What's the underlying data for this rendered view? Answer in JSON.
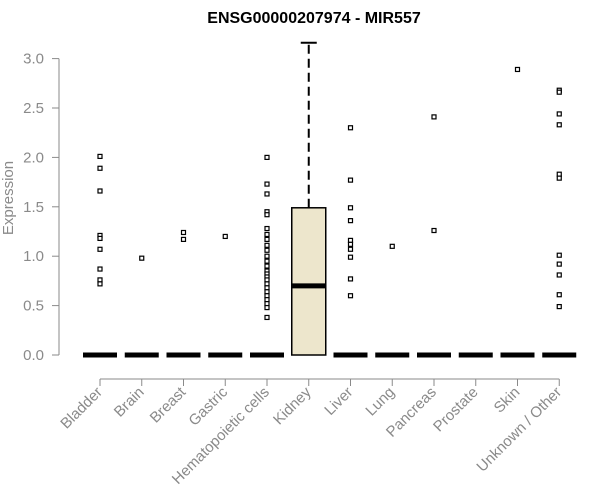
{
  "chart_data": {
    "type": "box",
    "title": "ENSG00000207974 - MIR557",
    "xlabel": "",
    "ylabel": "Expression",
    "ylim": [
      0,
      3.1
    ],
    "yticks": [
      "0.0",
      "0.5",
      "1.0",
      "1.5",
      "2.0",
      "2.5",
      "3.0"
    ],
    "categories": [
      "Bladder",
      "Brain",
      "Breast",
      "Gastric",
      "Hematopoietic cells",
      "Kidney",
      "Liver",
      "Lung",
      "Pancreas",
      "Prostate",
      "Skin",
      "Unknown / Other"
    ],
    "box_fill": "#ede6cc",
    "boxes": [
      {
        "category": "Bladder",
        "q1": 0,
        "median": 0,
        "q3": 0,
        "whisker_low": 0,
        "whisker_high": 0,
        "outliers": [
          2.01,
          1.89,
          1.66,
          1.21,
          1.18,
          1.07,
          0.87,
          0.76,
          0.72
        ]
      },
      {
        "category": "Brain",
        "q1": 0,
        "median": 0,
        "q3": 0,
        "whisker_low": 0,
        "whisker_high": 0,
        "outliers": [
          0.98
        ]
      },
      {
        "category": "Breast",
        "q1": 0,
        "median": 0,
        "q3": 0,
        "whisker_low": 0,
        "whisker_high": 0,
        "outliers": [
          1.24,
          1.17
        ]
      },
      {
        "category": "Gastric",
        "q1": 0,
        "median": 0,
        "q3": 0,
        "whisker_low": 0,
        "whisker_high": 0,
        "outliers": [
          1.2
        ]
      },
      {
        "category": "Hematopoietic cells",
        "q1": 0,
        "median": 0,
        "q3": 0,
        "whisker_low": 0,
        "whisker_high": 0,
        "outliers": [
          2.0,
          1.73,
          1.63,
          1.45,
          1.42,
          1.28,
          1.22,
          1.17,
          1.11,
          1.06,
          1.0,
          0.95,
          0.9,
          0.85,
          0.82,
          0.79,
          0.76,
          0.72,
          0.68,
          0.64,
          0.6,
          0.56,
          0.52,
          0.48,
          0.38
        ]
      },
      {
        "category": "Kidney",
        "q1": 0,
        "median": 0.7,
        "q3": 1.49,
        "whisker_low": 0,
        "whisker_high": 3.16,
        "outliers": []
      },
      {
        "category": "Liver",
        "q1": 0,
        "median": 0,
        "q3": 0,
        "whisker_low": 0,
        "whisker_high": 0,
        "outliers": [
          2.3,
          1.77,
          1.49,
          1.36,
          1.16,
          1.12,
          1.07,
          0.99,
          0.77,
          0.6
        ]
      },
      {
        "category": "Lung",
        "q1": 0,
        "median": 0,
        "q3": 0,
        "whisker_low": 0,
        "whisker_high": 0,
        "outliers": [
          1.1
        ]
      },
      {
        "category": "Pancreas",
        "q1": 0,
        "median": 0,
        "q3": 0,
        "whisker_low": 0,
        "whisker_high": 0,
        "outliers": [
          2.41,
          1.26
        ]
      },
      {
        "category": "Prostate",
        "q1": 0,
        "median": 0,
        "q3": 0,
        "whisker_low": 0,
        "whisker_high": 0,
        "outliers": []
      },
      {
        "category": "Skin",
        "q1": 0,
        "median": 0,
        "q3": 0,
        "whisker_low": 0,
        "whisker_high": 0,
        "outliers": [
          2.89
        ]
      },
      {
        "category": "Unknown / Other",
        "q1": 0,
        "median": 0,
        "q3": 0,
        "whisker_low": 0,
        "whisker_high": 0,
        "outliers": [
          2.68,
          2.66,
          2.44,
          2.33,
          1.83,
          1.79,
          1.01,
          0.92,
          0.81,
          0.61,
          0.49
        ]
      }
    ]
  }
}
